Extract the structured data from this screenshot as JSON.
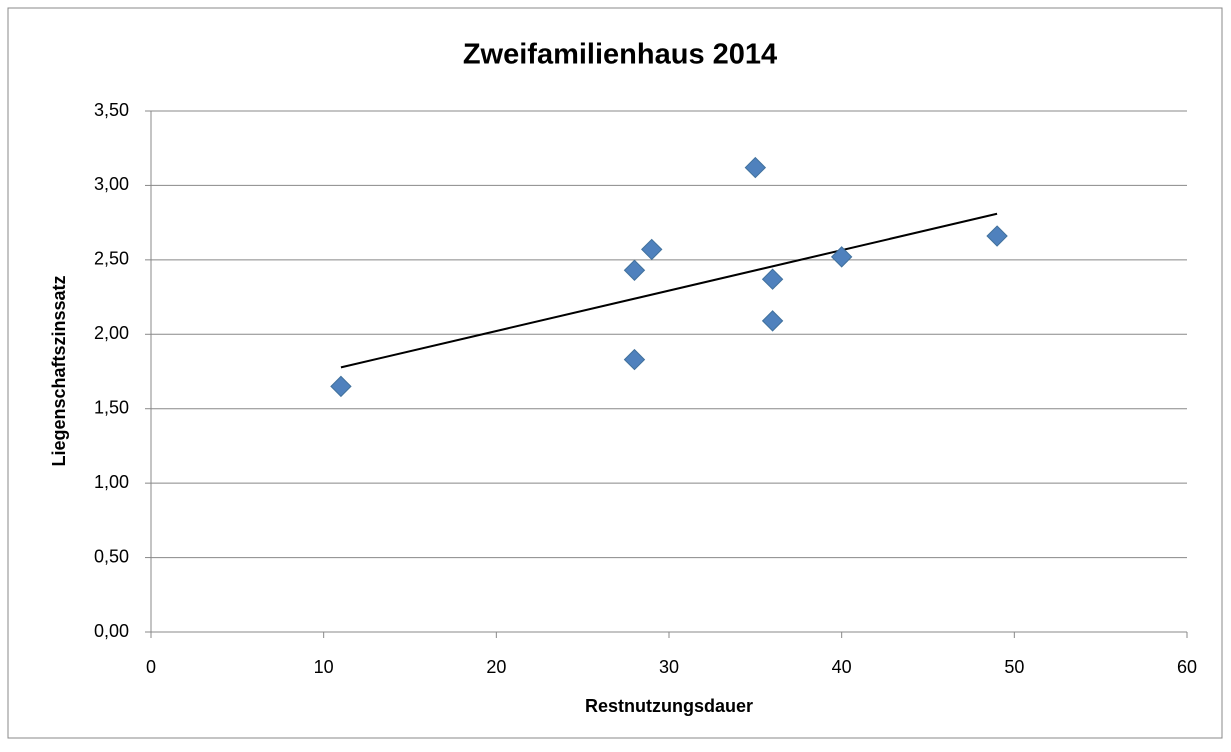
{
  "chart_data": {
    "type": "scatter",
    "title": "Zweifamilienhaus 2014",
    "x_label": "Restnutzungsdauer",
    "y_label": "Liegenschaftszinssatz",
    "series": [
      {
        "color": "#4f81bd",
        "x": [
          11,
          28,
          28,
          29,
          35,
          36,
          36,
          40,
          49
        ],
        "values": [
          1.65,
          1.83,
          2.43,
          2.57,
          3.12,
          2.37,
          2.09,
          2.52,
          2.66
        ]
      }
    ],
    "trendline": true,
    "trendline_color": "#000000",
    "xlim": [
      0,
      60
    ],
    "xticks": [
      0,
      10,
      20,
      30,
      40,
      50,
      60
    ],
    "ylim": [
      0,
      3.5
    ],
    "yticks": [
      {
        "value": 0,
        "label": "0,00"
      },
      {
        "value": 0.5,
        "label": "0,50"
      },
      {
        "value": 1,
        "label": "1,00"
      },
      {
        "value": 1.5,
        "label": "1,50"
      },
      {
        "value": 2,
        "label": "2,00"
      },
      {
        "value": 2.5,
        "label": "2,50"
      },
      {
        "value": 3,
        "label": "3,00"
      },
      {
        "value": 3.5,
        "label": "3,50"
      }
    ],
    "grid": true
  }
}
